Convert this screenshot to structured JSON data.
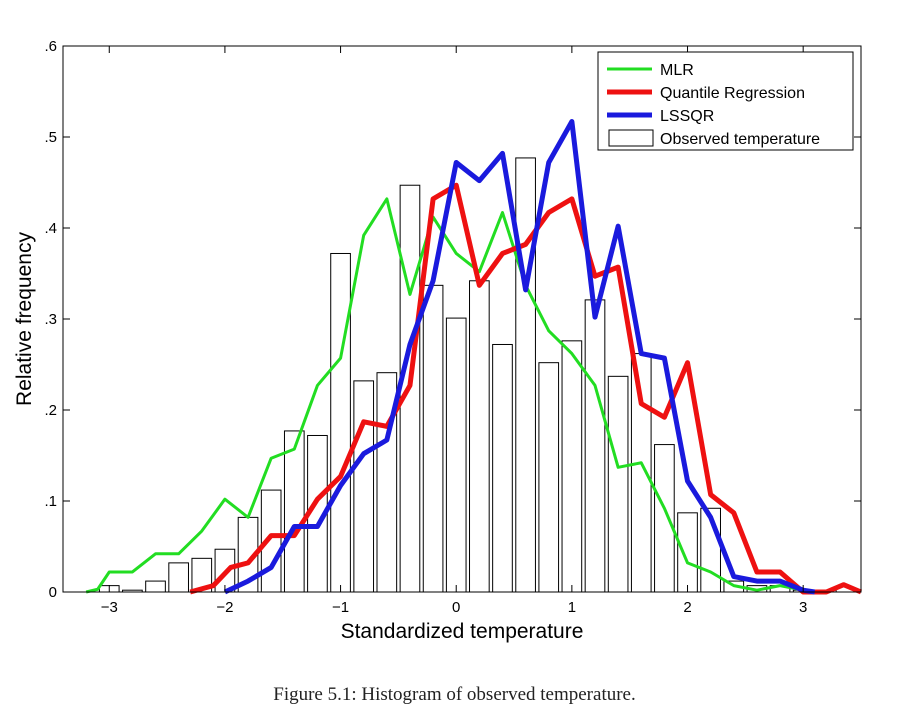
{
  "chart_data": {
    "type": "bar+line",
    "xlabel": "Standardized temperature",
    "ylabel": "Relative frequency",
    "xlim": [
      -3.4,
      3.5
    ],
    "ylim": [
      0,
      0.6
    ],
    "xticks": [
      -3,
      -2,
      -1,
      0,
      1,
      2,
      3
    ],
    "xtick_labels": [
      "−3",
      "−2",
      "−1",
      "0",
      "1",
      "2",
      "3"
    ],
    "yticks": [
      0,
      0.1,
      0.2,
      0.3,
      0.4,
      0.5,
      0.6
    ],
    "ytick_labels": [
      "0",
      ".1",
      ".2",
      ".3",
      ".4",
      ".5",
      ".6"
    ],
    "legend_position": "top-right",
    "bar_width": 0.17,
    "bars": {
      "name": "Observed temperature",
      "x": [
        -3.0,
        -2.8,
        -2.6,
        -2.4,
        -2.2,
        -2.0,
        -1.8,
        -1.6,
        -1.4,
        -1.2,
        -1.0,
        -0.8,
        -0.6,
        -0.4,
        -0.2,
        0.0,
        0.2,
        0.4,
        0.6,
        0.8,
        1.0,
        1.2,
        1.4,
        1.6,
        1.8,
        2.0,
        2.2,
        2.4,
        2.6,
        2.8,
        3.0,
        3.2
      ],
      "values": [
        0.007,
        0.002,
        0.012,
        0.032,
        0.037,
        0.047,
        0.082,
        0.112,
        0.177,
        0.172,
        0.372,
        0.232,
        0.241,
        0.447,
        0.337,
        0.301,
        0.342,
        0.272,
        0.477,
        0.252,
        0.276,
        0.321,
        0.237,
        0.262,
        0.162,
        0.087,
        0.092,
        0.012,
        0.007,
        0.007,
        0.002,
        0.002
      ]
    },
    "series": [
      {
        "name": "MLR",
        "color": "#22dd22",
        "x": [
          -3.2,
          -3.1,
          -3.0,
          -2.8,
          -2.6,
          -2.4,
          -2.2,
          -2.0,
          -1.8,
          -1.6,
          -1.4,
          -1.2,
          -1.0,
          -0.8,
          -0.6,
          -0.4,
          -0.2,
          0.0,
          0.2,
          0.4,
          0.6,
          0.8,
          1.0,
          1.2,
          1.4,
          1.6,
          1.8,
          2.0,
          2.2,
          2.4,
          2.6,
          2.8,
          3.0
        ],
        "values": [
          0.0,
          0.003,
          0.022,
          0.022,
          0.042,
          0.042,
          0.067,
          0.102,
          0.082,
          0.147,
          0.157,
          0.227,
          0.257,
          0.392,
          0.432,
          0.327,
          0.412,
          0.372,
          0.352,
          0.417,
          0.337,
          0.287,
          0.262,
          0.227,
          0.137,
          0.142,
          0.092,
          0.032,
          0.022,
          0.007,
          0.002,
          0.007,
          0.002
        ]
      },
      {
        "name": "Quantile Regression",
        "color": "#ee1111",
        "x": [
          -2.3,
          -2.1,
          -1.95,
          -1.8,
          -1.6,
          -1.4,
          -1.2,
          -1.0,
          -0.8,
          -0.6,
          -0.4,
          -0.2,
          0.0,
          0.2,
          0.4,
          0.6,
          0.8,
          1.0,
          1.2,
          1.4,
          1.6,
          1.8,
          2.0,
          2.2,
          2.4,
          2.6,
          2.8,
          3.0,
          3.2,
          3.35,
          3.5
        ],
        "values": [
          0.0,
          0.007,
          0.027,
          0.032,
          0.062,
          0.062,
          0.102,
          0.127,
          0.187,
          0.182,
          0.227,
          0.432,
          0.447,
          0.337,
          0.372,
          0.382,
          0.417,
          0.432,
          0.347,
          0.357,
          0.207,
          0.192,
          0.252,
          0.107,
          0.087,
          0.022,
          0.022,
          0.0,
          0.0,
          0.008,
          0.0
        ]
      },
      {
        "name": "LSSQR",
        "color": "#1a1add",
        "x": [
          -2.0,
          -1.8,
          -1.6,
          -1.4,
          -1.2,
          -1.0,
          -0.8,
          -0.6,
          -0.4,
          -0.2,
          0.0,
          0.2,
          0.4,
          0.6,
          0.8,
          1.0,
          1.2,
          1.4,
          1.6,
          1.8,
          2.0,
          2.2,
          2.4,
          2.6,
          2.8,
          3.0,
          3.1
        ],
        "values": [
          0.0,
          0.012,
          0.027,
          0.072,
          0.072,
          0.117,
          0.152,
          0.167,
          0.272,
          0.342,
          0.472,
          0.452,
          0.482,
          0.332,
          0.472,
          0.517,
          0.302,
          0.402,
          0.262,
          0.257,
          0.122,
          0.082,
          0.017,
          0.012,
          0.012,
          0.002,
          0.0
        ]
      }
    ]
  },
  "caption": "Figure 5.1: Histogram of observed temperature."
}
